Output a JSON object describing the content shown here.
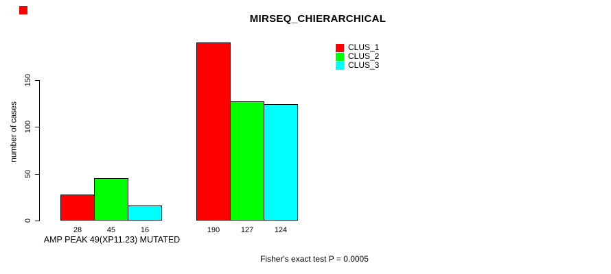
{
  "marker": {
    "color": "#ff0000"
  },
  "chart_data": {
    "type": "bar",
    "title": "MIRSEQ_CHIERARCHICAL",
    "ylabel": "number of cases",
    "xlabel": "",
    "ylim": [
      0,
      200
    ],
    "yticks": [
      0,
      50,
      100,
      150
    ],
    "grid": false,
    "legend_position": "top-right",
    "categories": [
      "AMP PEAK 49(XP11.23) MUTATED",
      ""
    ],
    "group_label": "AMP PEAK 49(XP11.23) MUTATED",
    "series": [
      {
        "name": "CLUS_1",
        "color": "#ff0000",
        "values": [
          28,
          190
        ]
      },
      {
        "name": "CLUS_2",
        "color": "#00ff00",
        "values": [
          45,
          127
        ]
      },
      {
        "name": "CLUS_3",
        "color": "#00ffff",
        "values": [
          16,
          124
        ]
      }
    ],
    "bar_value_labels": [
      "28",
      "45",
      "16",
      "190",
      "127",
      "124"
    ],
    "annotation": "Fisher's exact test P = 0.0005"
  }
}
